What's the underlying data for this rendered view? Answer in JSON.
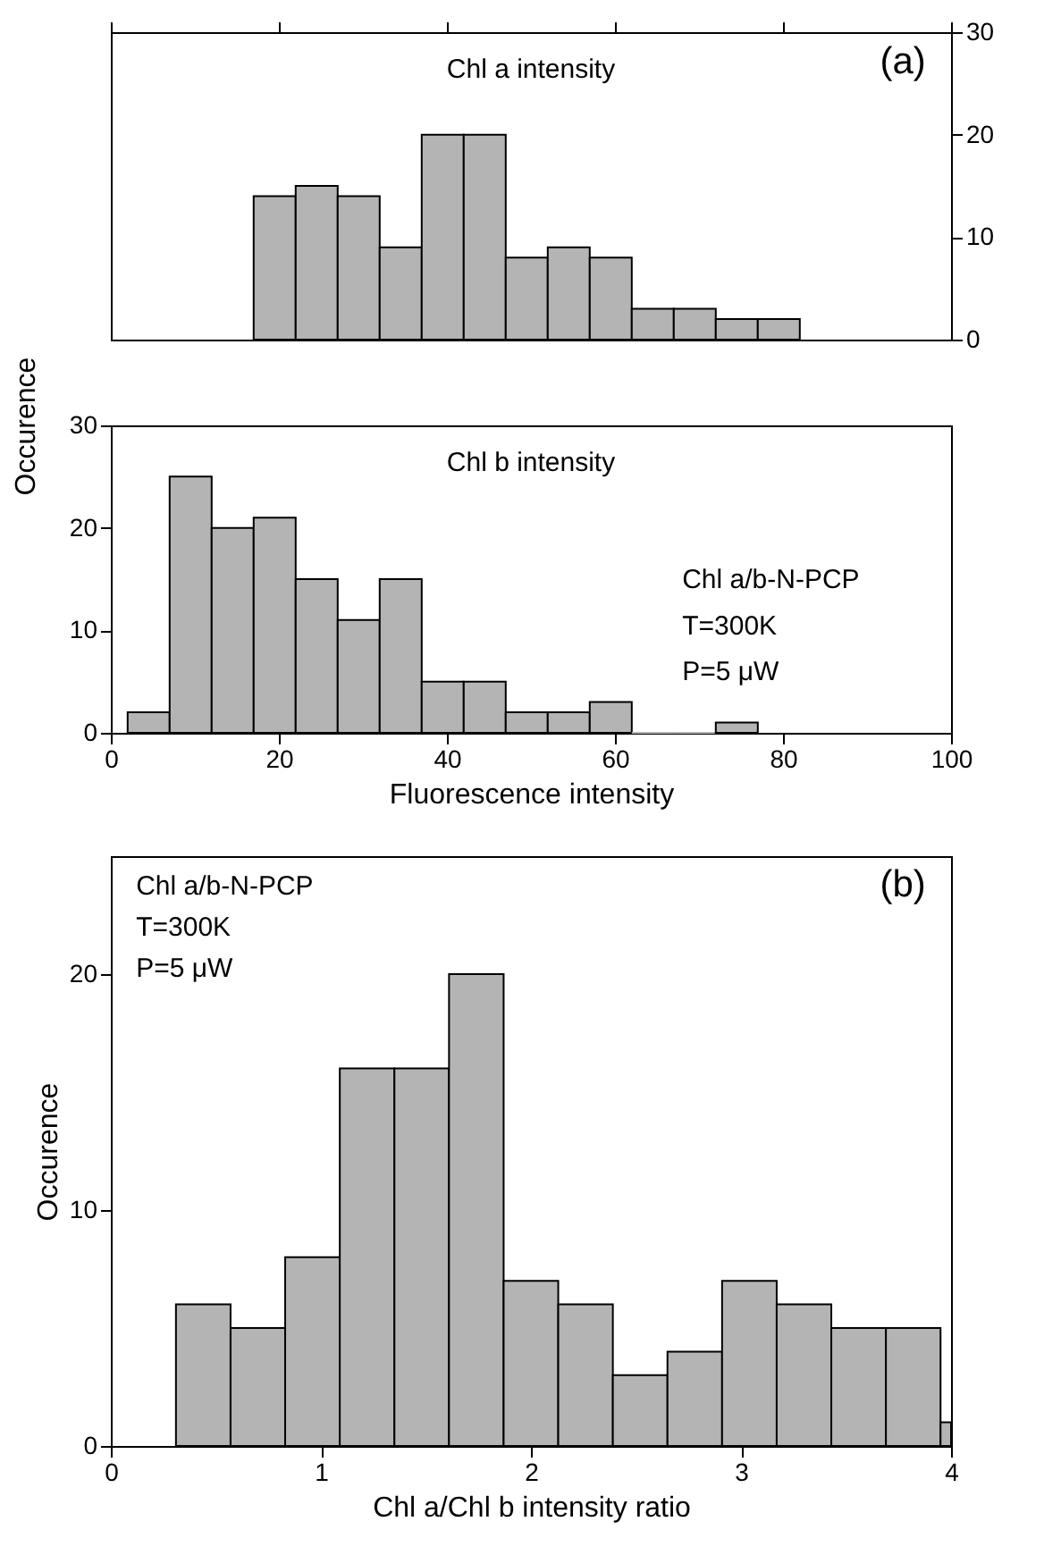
{
  "chart_data": [
    {
      "type": "histogram",
      "bins": [
        17,
        22,
        27,
        32,
        37,
        42,
        47,
        52,
        57,
        62,
        67,
        72,
        77,
        82
      ],
      "values": [
        14,
        15,
        14,
        9,
        20,
        20,
        8,
        9,
        8,
        3,
        3,
        2,
        2
      ],
      "color": "#b4b4b4",
      "xlim": [
        0,
        100
      ],
      "xticks": [
        0,
        20,
        40,
        60,
        80,
        100
      ],
      "ylim": [
        0,
        30
      ],
      "yticks": [
        0,
        10,
        20,
        30
      ],
      "tick_labels": "y",
      "grid": false,
      "annotations": [
        "Chl a intensity",
        "(a)"
      ]
    },
    {
      "type": "histogram",
      "bins": [
        2,
        7,
        12,
        17,
        22,
        27,
        32,
        37,
        42,
        47,
        52,
        57,
        62,
        67,
        72,
        77
      ],
      "values": [
        2,
        25,
        20,
        21,
        15,
        11,
        15,
        5,
        5,
        2,
        2,
        3,
        0,
        0,
        1
      ],
      "color": "#b4b4b4",
      "xlim": [
        0,
        100
      ],
      "xticks": [
        0,
        20,
        40,
        60,
        80,
        100
      ],
      "ylim": [
        0,
        30
      ],
      "yticks": [
        0,
        10,
        20,
        30
      ],
      "xlabel": "Fluorescence intensity",
      "ylabel": "Occurence",
      "grid": false,
      "annotations": [
        "Chl b intensity",
        "Chl a/b-N-PCP",
        "T=300K",
        "P=5 μW"
      ]
    },
    {
      "type": "histogram",
      "bins": [
        0.31,
        0.57,
        0.83,
        1.09,
        1.35,
        1.61,
        1.87,
        2.13,
        2.39,
        2.65,
        2.91,
        3.17,
        3.43,
        3.69,
        3.95,
        4.0
      ],
      "values": [
        6,
        5,
        8,
        16,
        16,
        20,
        7,
        6,
        3,
        4,
        7,
        6,
        5,
        5,
        1
      ],
      "color": "#b4b4b4",
      "xlim": [
        0,
        4
      ],
      "xticks": [
        0,
        1,
        2,
        3,
        4
      ],
      "ylim": [
        0,
        25
      ],
      "yticks": [
        0,
        10,
        20
      ],
      "xlabel": "Chl a/Chl b intensity ratio",
      "ylabel": "Occurence",
      "grid": false,
      "annotations": [
        "Chl a/b-N-PCP",
        "T=300K",
        "P=5 μW",
        "(b)"
      ]
    }
  ]
}
